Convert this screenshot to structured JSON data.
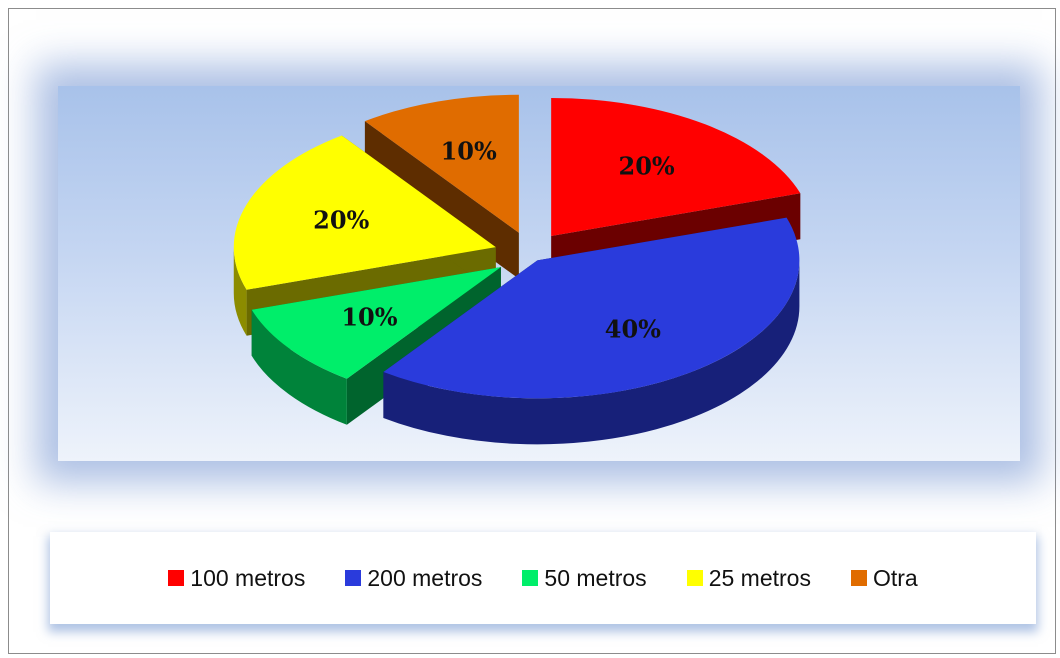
{
  "chart_data": {
    "type": "pie",
    "categories": [
      "100 metros",
      "200 metros",
      "50 metros",
      "25 metros",
      "Otra"
    ],
    "values": [
      20,
      40,
      10,
      20,
      10
    ],
    "data_labels": [
      "20%",
      "40%",
      "10%",
      "20%",
      "10%"
    ],
    "colors": [
      "#ff0000",
      "#2a3bdc",
      "#00ee6a",
      "#ffff00",
      "#e06c00"
    ],
    "legend_position": "bottom",
    "style": "3d-exploded"
  },
  "legend": {
    "items": [
      {
        "label": "100 metros",
        "color": "#ff0000"
      },
      {
        "label": "200 metros",
        "color": "#2a3bdc"
      },
      {
        "label": "50 metros",
        "color": "#00ee6a"
      },
      {
        "label": "25 metros",
        "color": "#ffff00"
      },
      {
        "label": "Otra",
        "color": "#e06c00"
      }
    ]
  }
}
